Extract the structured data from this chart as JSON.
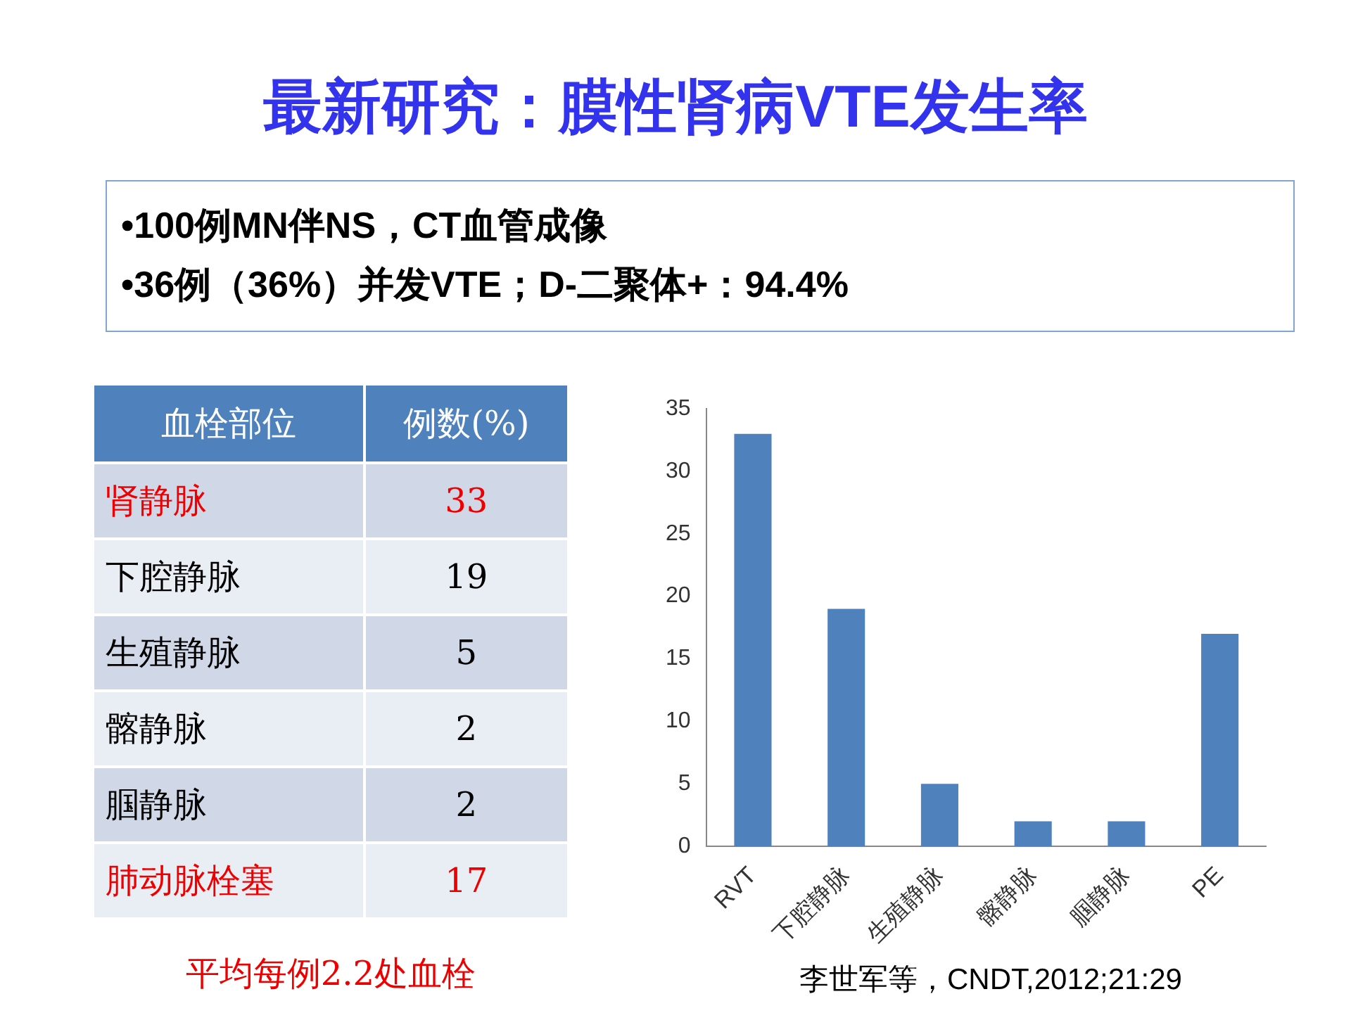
{
  "chart_data": [
    {
      "type": "other",
      "categories": [
        "肾静脉",
        "下腔静脉",
        "生殖静脉",
        "髂静脉",
        "腘静脉",
        "肺动脉栓塞"
      ],
      "values": [
        33,
        19,
        5,
        2,
        2,
        17
      ],
      "data_labels": true,
      "annotations": [
        "血栓部位",
        "例数(%)",
        "平均每例2.2处血栓"
      ]
    },
    {
      "type": "bar",
      "title": "最新研究：膜性肾病VTE发生率",
      "categories": [
        "RVT",
        "下腔静脉",
        "生殖静脉",
        "髂静脉",
        "腘静脉",
        "PE"
      ],
      "values": [
        33,
        19,
        5,
        2,
        2,
        17
      ],
      "color": "#4f81bd",
      "ylim": [
        0,
        35
      ],
      "yticks": [
        0,
        5,
        10,
        15,
        20,
        25,
        30,
        35
      ],
      "annotations": [
        "•100例MN伴NS，CT血管成像",
        "•36例（36%）并发VTE；D-二聚体+：94.4%",
        "李世军等，CNDT,2012;21:29"
      ]
    }
  ]
}
